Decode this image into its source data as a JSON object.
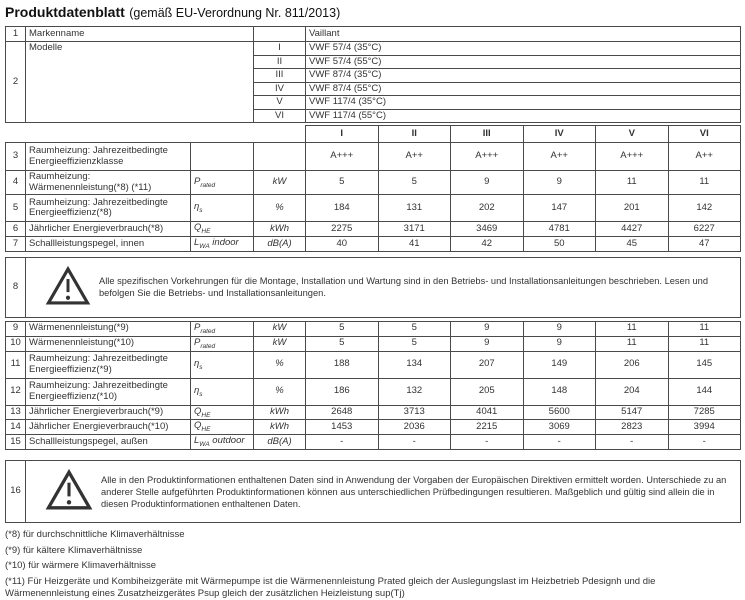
{
  "title": {
    "bold": "Produktdatenblatt",
    "normal": "(gemäß EU-Verordnung Nr. 811/2013)"
  },
  "brand_table": {
    "row1": {
      "num": "1",
      "label": "Markenname",
      "value": "Vaillant"
    },
    "row2": {
      "num": "2",
      "label": "Modelle",
      "models": [
        {
          "numeral": "I",
          "name": "VWF 57/4 (35°C)"
        },
        {
          "numeral": "II",
          "name": "VWF 57/4 (55°C)"
        },
        {
          "numeral": "III",
          "name": "VWF 87/4 (35°C)"
        },
        {
          "numeral": "IV",
          "name": "VWF 87/4 (55°C)"
        },
        {
          "numeral": "V",
          "name": "VWF 117/4 (35°C)"
        },
        {
          "numeral": "VI",
          "name": "VWF 117/4 (55°C)"
        }
      ]
    }
  },
  "column_headers": [
    "I",
    "II",
    "III",
    "IV",
    "V",
    "VI"
  ],
  "table_a": {
    "rows": [
      {
        "num": "3",
        "label": "Raumheizung: Jahrezeitbedingte Energieeffizienzklasse",
        "symbol": "",
        "sub": "",
        "suffix": "",
        "unit": "",
        "values": [
          "A+++",
          "A++",
          "A+++",
          "A++",
          "A+++",
          "A++"
        ]
      },
      {
        "num": "4",
        "label": "Raumheizung: Wärmenennleistung(*8) (*11)",
        "symbol": "P",
        "sub": "rated",
        "suffix": "",
        "unit": "kW",
        "values": [
          "5",
          "5",
          "9",
          "9",
          "11",
          "11"
        ]
      },
      {
        "num": "5",
        "label": "Raumheizung: Jahrezeitbedingte Energieeffizienz(*8)",
        "symbol": "η",
        "sub": "s",
        "suffix": "",
        "unit": "%",
        "values": [
          "184",
          "131",
          "202",
          "147",
          "201",
          "142"
        ]
      },
      {
        "num": "6",
        "label": "Jährlicher Energieverbrauch(*8)",
        "symbol": "Q",
        "sub": "HE",
        "suffix": "",
        "unit": "kWh",
        "values": [
          "2275",
          "3171",
          "3469",
          "4781",
          "4427",
          "6227"
        ]
      },
      {
        "num": "7",
        "label": "Schallleistungspegel, innen",
        "symbol": "L",
        "sub": "WA",
        "suffix": " indoor",
        "unit": "dB(A)",
        "values": [
          "40",
          "41",
          "42",
          "50",
          "45",
          "47"
        ]
      }
    ]
  },
  "warning_8": {
    "num": "8",
    "icon": "warning-triangle",
    "text": "Alle spezifischen Vorkehrungen für die Montage, Installation und Wartung sind in den Betriebs- und Installationsanleitungen beschrieben. Lesen und befolgen Sie die Betriebs- und Installationsanleitungen."
  },
  "table_b": {
    "rows": [
      {
        "num": "9",
        "label": "Wärmenennleistung(*9)",
        "symbol": "P",
        "sub": "rated",
        "suffix": "",
        "unit": "kW",
        "values": [
          "5",
          "5",
          "9",
          "9",
          "11",
          "11"
        ]
      },
      {
        "num": "10",
        "label": "Wärmenennleistung(*10)",
        "symbol": "P",
        "sub": "rated",
        "suffix": "",
        "unit": "kW",
        "values": [
          "5",
          "5",
          "9",
          "9",
          "11",
          "11"
        ]
      },
      {
        "num": "11",
        "label": "Raumheizung: Jahrezeitbedingte Energieeffizienz(*9)",
        "symbol": "η",
        "sub": "s",
        "suffix": "",
        "unit": "%",
        "values": [
          "188",
          "134",
          "207",
          "149",
          "206",
          "145"
        ]
      },
      {
        "num": "12",
        "label": "Raumheizung: Jahrezeitbedingte Energieeffizienz(*10)",
        "symbol": "η",
        "sub": "s",
        "suffix": "",
        "unit": "%",
        "values": [
          "186",
          "132",
          "205",
          "148",
          "204",
          "144"
        ]
      },
      {
        "num": "13",
        "label": "Jährlicher Energieverbrauch(*9)",
        "symbol": "Q",
        "sub": "HE",
        "suffix": "",
        "unit": "kWh",
        "values": [
          "2648",
          "3713",
          "4041",
          "5600",
          "5147",
          "7285"
        ]
      },
      {
        "num": "14",
        "label": "Jährlicher Energieverbrauch(*10)",
        "symbol": "Q",
        "sub": "HE",
        "suffix": "",
        "unit": "kWh",
        "values": [
          "1453",
          "2036",
          "2215",
          "3069",
          "2823",
          "3994"
        ]
      },
      {
        "num": "15",
        "label": "Schallleistungspegel, außen",
        "symbol": "L",
        "sub": "WA",
        "suffix": " outdoor",
        "unit": "dB(A)",
        "values": [
          "-",
          "-",
          "-",
          "-",
          "-",
          "-"
        ]
      }
    ]
  },
  "warning_16": {
    "num": "16",
    "icon": "warning-triangle",
    "text": "Alle in den Produktinformationen enthaltenen Daten sind in Anwendung der Vorgaben der Europäischen Direktiven ermittelt worden. Unterschiede zu an anderer Stelle aufgeführten Produktinformationen können aus unterschiedlichen Prüfbedingungen resultieren. Maßgeblich und gültig sind allein die in diesen Produktinformationen enthaltenen Daten."
  },
  "footnotes": [
    "(*8) für durchschnittliche Klimaverhältnisse",
    "(*9) für kältere Klimaverhältnisse",
    "(*10) für wärmere Klimaverhältnisse",
    "(*11) Für Heizgeräte und Kombiheizgeräte mit Wärmepumpe ist die Wärmenennleistung Prated gleich der Auslegungslast im Heizbetrieb Pdesignh und die Wärmenennleistung eines Zusatzheizgerätes Psup gleich der zusätzlichen Heizleistung sup(Tj)"
  ]
}
